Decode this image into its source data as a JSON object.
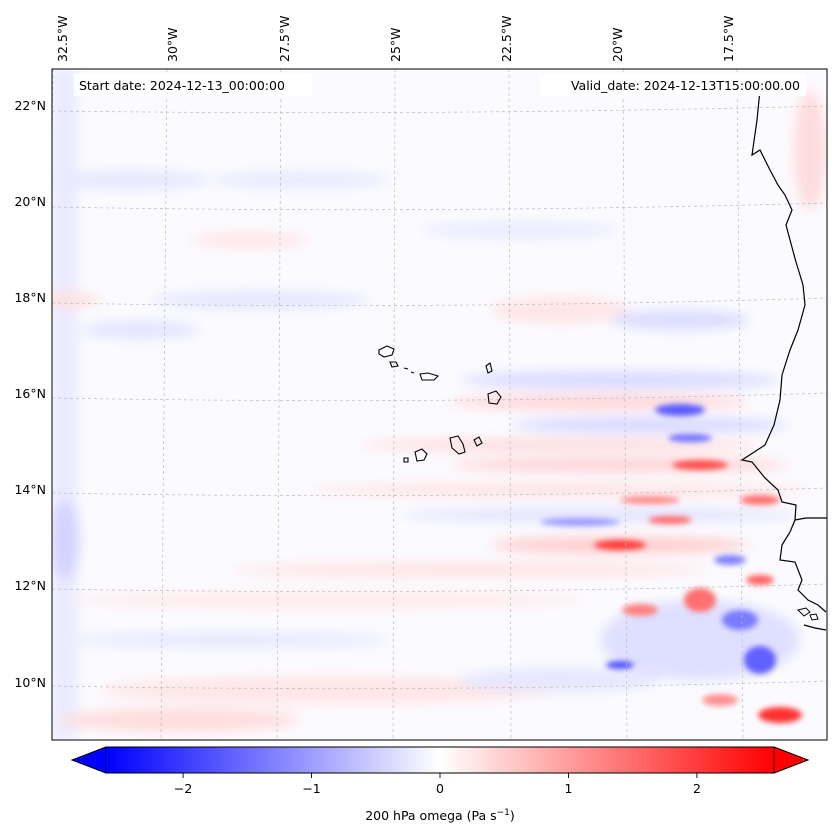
{
  "map": {
    "start_date": "Start date: 2024-12-13_00:00:00",
    "valid_date": "Valid_date: 2024-12-13T15:00:00.00",
    "lon_labels": [
      "32.5°W",
      "30°W",
      "27.5°W",
      "25°W",
      "22.5°W",
      "20°W",
      "17.5°W"
    ],
    "lat_labels": [
      "22°N",
      "20°N",
      "18°N",
      "16°N",
      "14°N",
      "12°N",
      "10°N"
    ],
    "lon_range": [
      -33,
      -16
    ],
    "lat_range": [
      8.8,
      22.8
    ],
    "gridlines": true
  },
  "colorbar": {
    "label": "200 hPa omega (Pa s",
    "label_sup": "−1",
    "label_end": ")",
    "ticks": [
      "−2",
      "−1",
      "0",
      "1",
      "2"
    ],
    "tick_values": [
      -2,
      -1,
      0,
      1,
      2
    ],
    "range": [
      -2.6,
      2.6
    ],
    "extend": "both",
    "colormap": "bwr",
    "color_low": "#0000ff",
    "color_mid": "#ffffff",
    "color_high": "#ff0000"
  }
}
